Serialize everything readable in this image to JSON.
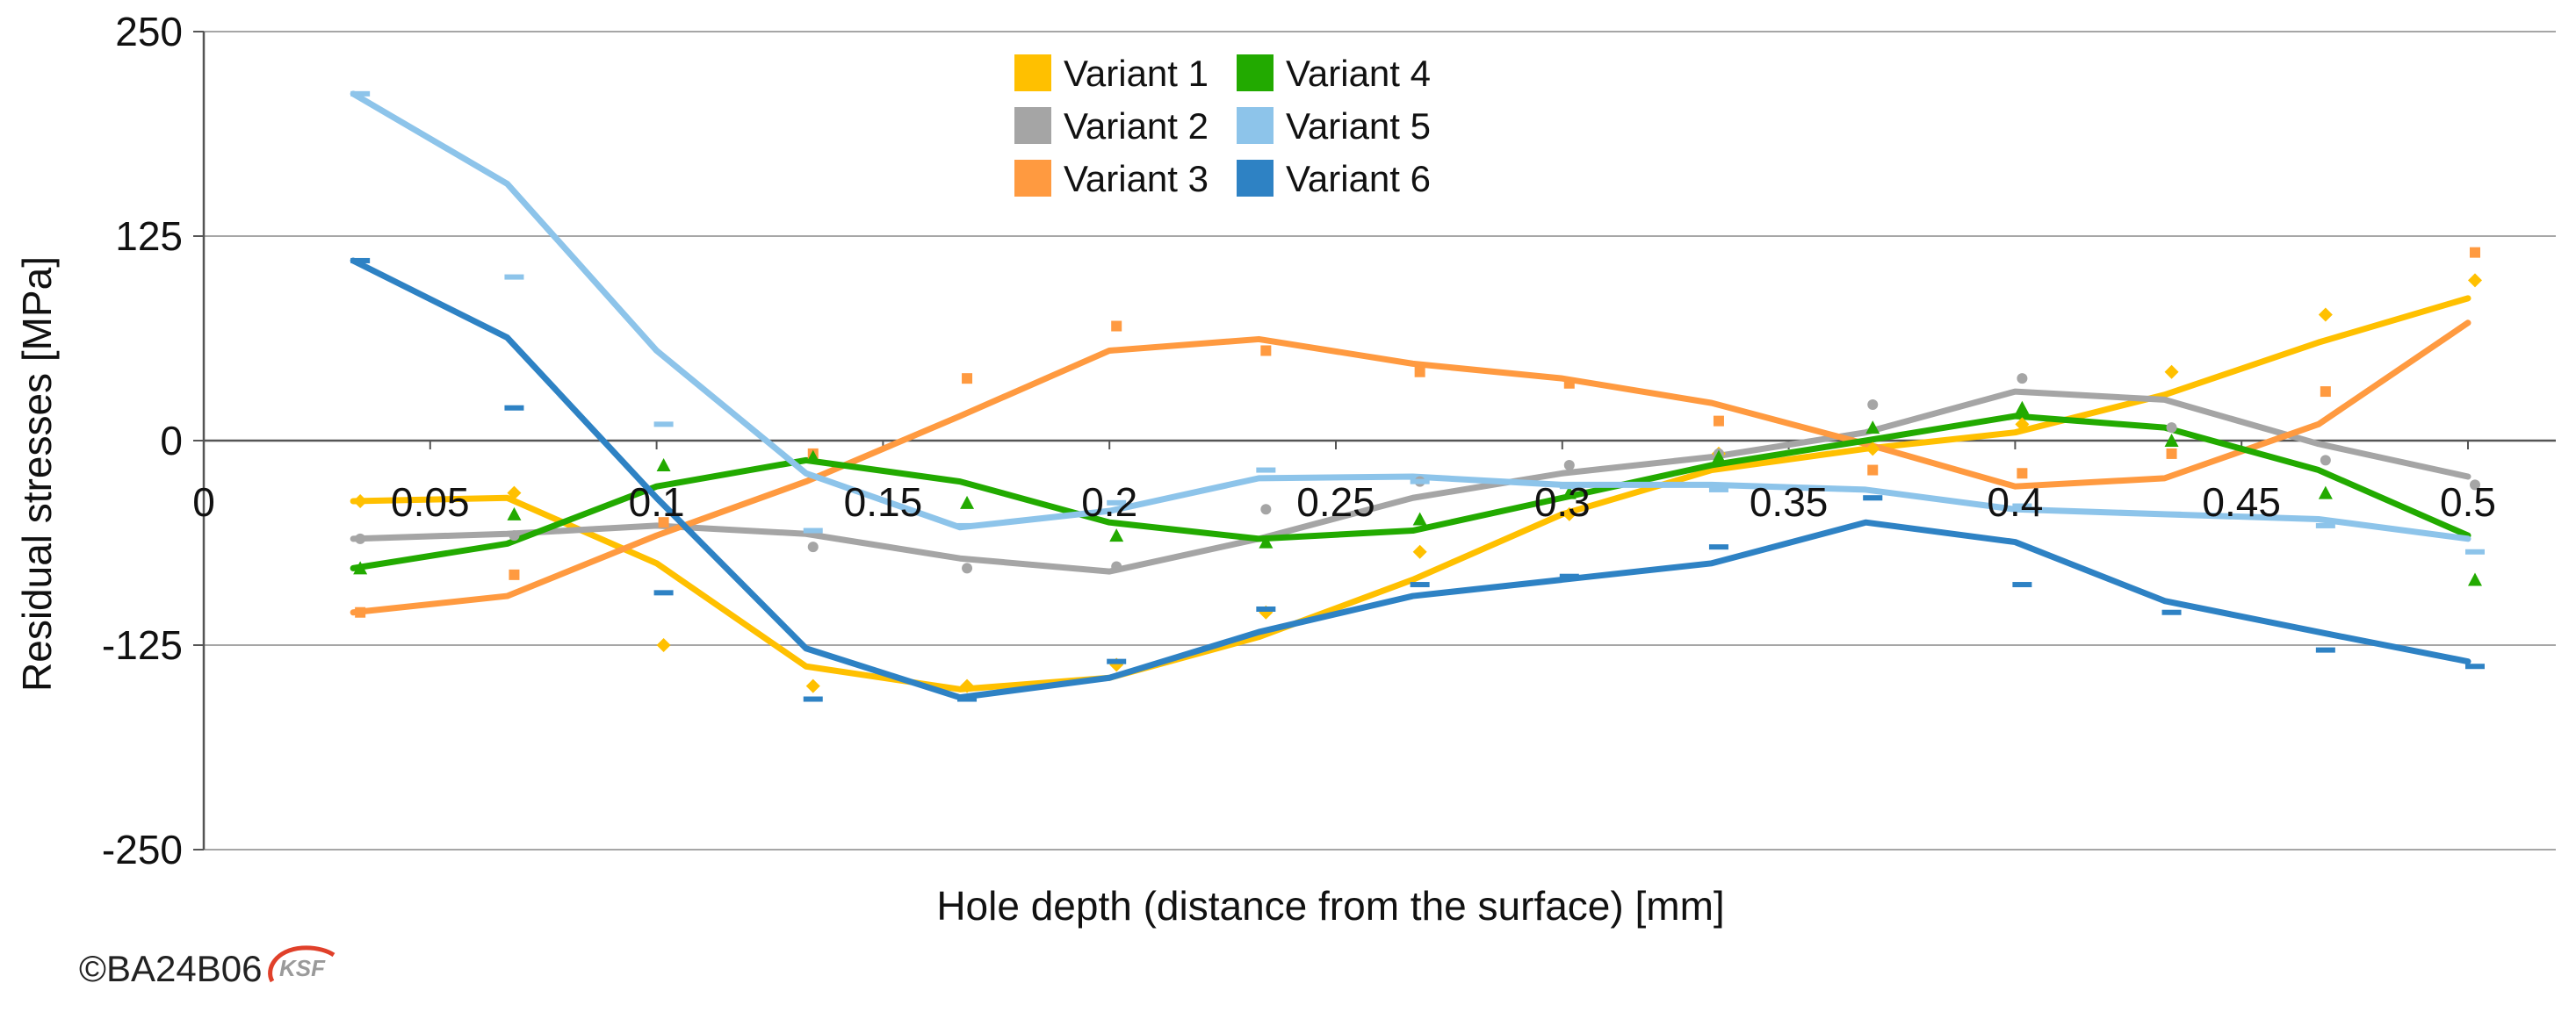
{
  "copyright": "©BA24B06",
  "logo_text": "KSF",
  "chart_data": {
    "type": "line",
    "title": "",
    "xlabel": "Hole depth (distance from the surface) [mm]",
    "ylabel": "Residual stresses  [MPa]",
    "xlim": [
      0,
      0.52
    ],
    "ylim": [
      -250,
      250
    ],
    "x_ticks": [
      0,
      0.05,
      0.1,
      0.15,
      0.2,
      0.25,
      0.3,
      0.35,
      0.4,
      0.45,
      0.5
    ],
    "x_tick_labels": [
      "0",
      "0.05",
      "0.1",
      "0.15",
      "0.2",
      "0.25",
      "0.3",
      "0.35",
      "0.4",
      "0.45",
      "0.5"
    ],
    "y_ticks": [
      250,
      125,
      0,
      -125,
      -250
    ],
    "y_tick_labels": [
      "250",
      "125",
      "0",
      "-125",
      "-250"
    ],
    "grid": true,
    "legend_position": "top-center",
    "x": [
      0.033,
      0.067,
      0.1,
      0.133,
      0.167,
      0.2,
      0.233,
      0.267,
      0.3,
      0.333,
      0.367,
      0.4,
      0.433,
      0.467,
      0.5
    ],
    "series": [
      {
        "name": "Variant 1",
        "color": "#FFC000",
        "marker": "diamond",
        "line": [
          -37,
          -35,
          -75,
          -138,
          -152,
          -145,
          -120,
          -85,
          -45,
          -18,
          -5,
          5,
          28,
          60,
          87
        ],
        "points": [
          -37,
          -32,
          -125,
          -150,
          -150,
          -137,
          -105,
          -68,
          -45,
          -8,
          -5,
          10,
          42,
          77,
          98
        ]
      },
      {
        "name": "Variant 2",
        "color": "#A5A5A5",
        "marker": "circle",
        "line": [
          -60,
          -57,
          -52,
          -57,
          -72,
          -80,
          -60,
          -35,
          -20,
          -10,
          5,
          30,
          25,
          -2,
          -22
        ],
        "points": [
          -60,
          -58,
          -50,
          -65,
          -78,
          -77,
          -42,
          -25,
          -15,
          -8,
          22,
          38,
          8,
          -12,
          -27
        ]
      },
      {
        "name": "Variant 3",
        "color": "#FF9A40",
        "marker": "square",
        "line": [
          -105,
          -95,
          -58,
          -25,
          15,
          55,
          62,
          47,
          38,
          23,
          -2,
          -28,
          -23,
          10,
          72
        ],
        "points": [
          -105,
          -82,
          -50,
          -8,
          38,
          70,
          55,
          42,
          35,
          12,
          -18,
          -20,
          -8,
          30,
          115
        ]
      },
      {
        "name": "Variant 4",
        "color": "#22AA00",
        "marker": "triangle",
        "line": [
          -78,
          -63,
          -28,
          -12,
          -25,
          -50,
          -60,
          -55,
          -35,
          -15,
          0,
          15,
          8,
          -18,
          -58
        ],
        "points": [
          -78,
          -45,
          -15,
          -10,
          -38,
          -58,
          -62,
          -48,
          -32,
          -10,
          8,
          20,
          0,
          -32,
          -85
        ]
      },
      {
        "name": "Variant 5",
        "color": "#8DC4EA",
        "marker": "dash",
        "line": [
          212,
          157,
          55,
          -20,
          -53,
          -43,
          -23,
          -22,
          -27,
          -27,
          -30,
          -42,
          -45,
          -48,
          -60
        ],
        "points": [
          212,
          100,
          10,
          -55,
          -52,
          -38,
          -18,
          -25,
          -28,
          -30,
          -35,
          -40,
          -45,
          -52,
          -68
        ]
      },
      {
        "name": "Variant 6",
        "color": "#2E82C4",
        "marker": "dash",
        "line": [
          110,
          63,
          -35,
          -127,
          -157,
          -145,
          -117,
          -95,
          -85,
          -75,
          -50,
          -62,
          -98,
          -117,
          -135
        ],
        "points": [
          110,
          20,
          -93,
          -158,
          -158,
          -135,
          -103,
          -88,
          -83,
          -65,
          -35,
          -88,
          -105,
          -128,
          -138
        ]
      }
    ]
  }
}
